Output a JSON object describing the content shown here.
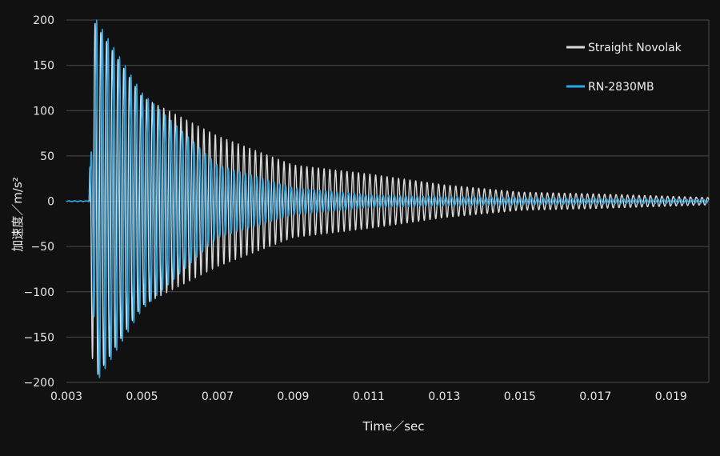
{
  "chart_data": {
    "type": "line",
    "xlabel": "Time／sec",
    "ylabel": "加速度／m/s²",
    "xlim": [
      0.003,
      0.02
    ],
    "ylim": [
      -200,
      200
    ],
    "x_ticks": [
      "0.003",
      "0.005",
      "0.007",
      "0.009",
      "0.011",
      "0.013",
      "0.015",
      "0.017",
      "0.019"
    ],
    "y_ticks": [
      "200",
      "150",
      "100",
      "50",
      "0",
      "−50",
      "−100",
      "−150",
      "−200"
    ],
    "grid": true,
    "legend_position": "top-right",
    "series": [
      {
        "name": "Straight Novolak",
        "color": "#d9d9d9",
        "onset_time": 0.00357,
        "frequency_hz": 6600,
        "peak_amplitude": 200,
        "envelope": [
          [
            0.0036,
            0
          ],
          [
            0.0037,
            200
          ],
          [
            0.005,
            115
          ],
          [
            0.007,
            72
          ],
          [
            0.009,
            40
          ],
          [
            0.011,
            30
          ],
          [
            0.013,
            18
          ],
          [
            0.015,
            10
          ],
          [
            0.017,
            8
          ],
          [
            0.02,
            4
          ]
        ]
      },
      {
        "name": "RN-2830MB",
        "color": "#2aa7e6",
        "onset_time": 0.00362,
        "frequency_hz": 6600,
        "peak_amplitude": 200,
        "envelope": [
          [
            0.0036,
            0
          ],
          [
            0.0038,
            200
          ],
          [
            0.005,
            120
          ],
          [
            0.007,
            40
          ],
          [
            0.009,
            15
          ],
          [
            0.011,
            7
          ],
          [
            0.013,
            5
          ],
          [
            0.015,
            4
          ],
          [
            0.017,
            3
          ],
          [
            0.02,
            2
          ]
        ]
      }
    ]
  }
}
